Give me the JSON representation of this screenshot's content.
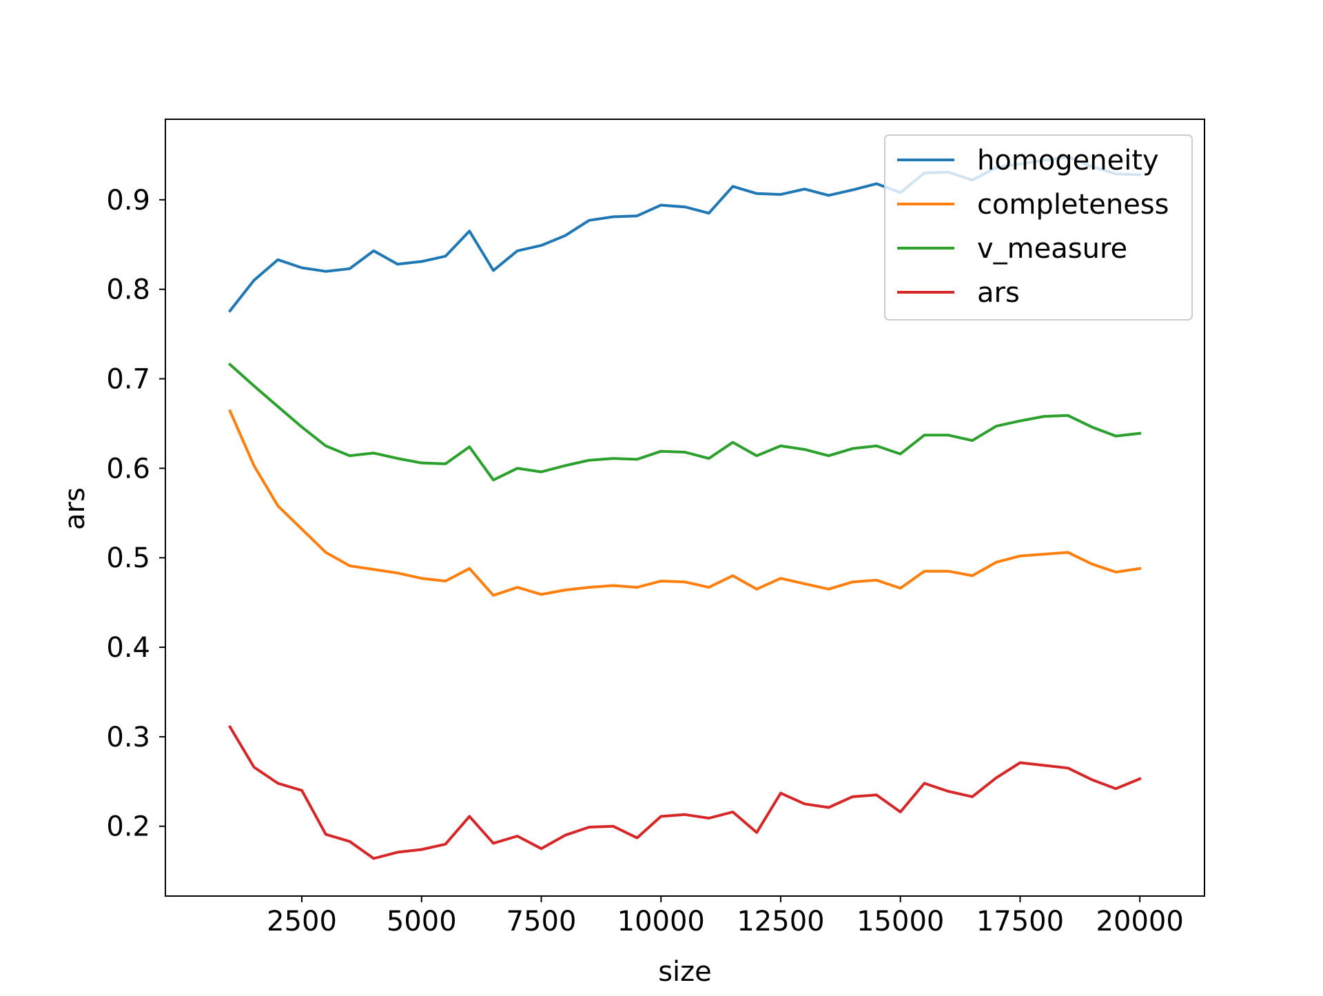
{
  "chart_data": {
    "type": "line",
    "xlabel": "size",
    "ylabel": "ars",
    "xlim": [
      -350,
      21350
    ],
    "ylim": [
      0.122,
      0.99
    ],
    "xticks": [
      2500,
      5000,
      7500,
      10000,
      12500,
      15000,
      17500,
      20000
    ],
    "xtick_labels": [
      "2500",
      "5000",
      "7500",
      "10000",
      "12500",
      "15000",
      "17500",
      "20000"
    ],
    "yticks": [
      0.2,
      0.3,
      0.4,
      0.5,
      0.6,
      0.7,
      0.8,
      0.9
    ],
    "ytick_labels": [
      "0.2",
      "0.3",
      "0.4",
      "0.5",
      "0.6",
      "0.7",
      "0.8",
      "0.9"
    ],
    "grid": false,
    "legend_position": "top-right",
    "x": [
      1000,
      1500,
      2000,
      2500,
      3000,
      3500,
      4000,
      4500,
      5000,
      5500,
      6000,
      6500,
      7000,
      7500,
      8000,
      8500,
      9000,
      9500,
      10000,
      10500,
      11000,
      11500,
      12000,
      12500,
      13000,
      13500,
      14000,
      14500,
      15000,
      15500,
      16000,
      16500,
      17000,
      17500,
      18000,
      18500,
      19000,
      19500,
      20000
    ],
    "series": [
      {
        "name": "homogeneity",
        "color": "#1f77b4",
        "values": [
          0.776,
          0.81,
          0.833,
          0.824,
          0.82,
          0.823,
          0.843,
          0.828,
          0.831,
          0.837,
          0.865,
          0.821,
          0.843,
          0.849,
          0.86,
          0.877,
          0.881,
          0.882,
          0.894,
          0.892,
          0.885,
          0.915,
          0.907,
          0.906,
          0.912,
          0.905,
          0.911,
          0.918,
          0.908,
          0.93,
          0.931,
          0.922,
          0.936,
          0.94,
          0.944,
          0.948,
          0.937,
          0.929,
          0.928
        ]
      },
      {
        "name": "completeness",
        "color": "#ff7f0e",
        "values": [
          0.664,
          0.603,
          0.558,
          0.532,
          0.506,
          0.491,
          0.487,
          0.483,
          0.477,
          0.474,
          0.488,
          0.458,
          0.467,
          0.459,
          0.464,
          0.467,
          0.469,
          0.467,
          0.474,
          0.473,
          0.467,
          0.48,
          0.465,
          0.477,
          0.471,
          0.465,
          0.473,
          0.475,
          0.466,
          0.485,
          0.485,
          0.48,
          0.495,
          0.502,
          0.504,
          0.506,
          0.493,
          0.484,
          0.488
        ]
      },
      {
        "name": "v_measure",
        "color": "#2ca02c",
        "values": [
          0.716,
          0.692,
          0.669,
          0.646,
          0.625,
          0.614,
          0.617,
          0.611,
          0.606,
          0.605,
          0.624,
          0.587,
          0.6,
          0.596,
          0.603,
          0.609,
          0.611,
          0.61,
          0.619,
          0.618,
          0.611,
          0.629,
          0.614,
          0.625,
          0.621,
          0.614,
          0.622,
          0.625,
          0.616,
          0.637,
          0.637,
          0.631,
          0.647,
          0.653,
          0.658,
          0.659,
          0.646,
          0.636,
          0.639
        ]
      },
      {
        "name": "ars",
        "color": "#d62728",
        "values": [
          0.311,
          0.266,
          0.248,
          0.24,
          0.191,
          0.183,
          0.164,
          0.171,
          0.174,
          0.18,
          0.211,
          0.181,
          0.189,
          0.175,
          0.19,
          0.199,
          0.2,
          0.187,
          0.211,
          0.213,
          0.209,
          0.216,
          0.193,
          0.237,
          0.225,
          0.221,
          0.233,
          0.235,
          0.216,
          0.248,
          0.239,
          0.233,
          0.254,
          0.271,
          0.268,
          0.265,
          0.252,
          0.242,
          0.253
        ]
      }
    ]
  }
}
